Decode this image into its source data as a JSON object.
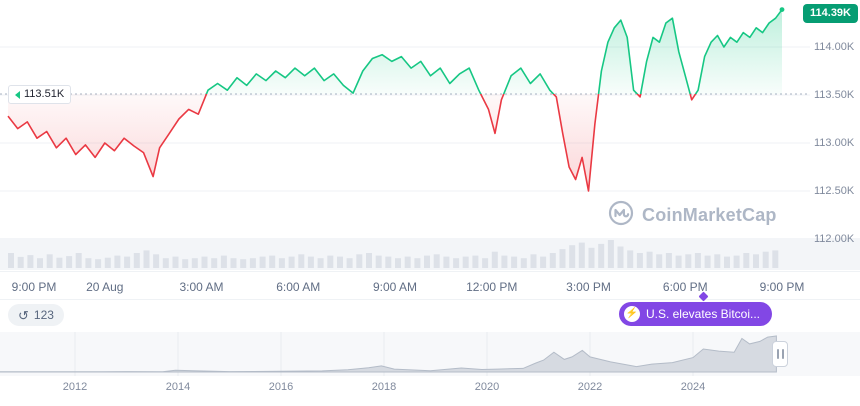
{
  "watermark": "CoinMarketCap",
  "colors": {
    "green": "#16c784",
    "red": "#ea3943",
    "purple": "#8247e5",
    "price_badge_bg": "#069d73",
    "axis_text": "#808a9d",
    "grid": "#eff2f5",
    "volume_bar": "#dde1e8",
    "minimap_fill": "#d6dae1"
  },
  "toolbar": {
    "history_icon": "↺",
    "history_count": "123",
    "bolt_icon": "⚡",
    "news_label": "U.S. elevates Bitcoi..."
  },
  "chart_data": [
    {
      "type": "area",
      "title": "BTC price, last 24 hours (baseline chart)",
      "baseline": 113.51,
      "baseline_label": "113.51K",
      "last_price_label": "114.39K",
      "ylim": [
        111.95,
        114.55
      ],
      "y_ticks": [
        "114.00K",
        "113.50K",
        "113.00K",
        "112.50K",
        "112.00K"
      ],
      "y_tick_values": [
        114.0,
        113.5,
        113.0,
        112.5,
        112.0
      ],
      "x_labels": [
        "9:00 PM",
        "20 Aug",
        "3:00 AM",
        "6:00 AM",
        "9:00 AM",
        "12:00 PM",
        "3:00 PM",
        "6:00 PM",
        "9:00 PM"
      ],
      "x_label_hours": [
        0,
        3,
        6,
        9,
        12,
        15,
        18,
        21,
        24
      ],
      "series": [
        {
          "name": "price_k_usd",
          "x": [
            0,
            0.3,
            0.6,
            0.9,
            1.2,
            1.5,
            1.8,
            2.1,
            2.4,
            2.7,
            3.0,
            3.3,
            3.6,
            3.9,
            4.2,
            4.5,
            4.7,
            5.0,
            5.3,
            5.6,
            5.9,
            6.2,
            6.5,
            6.8,
            7.1,
            7.4,
            7.7,
            8.0,
            8.3,
            8.6,
            8.9,
            9.2,
            9.5,
            9.8,
            10.1,
            10.4,
            10.7,
            11.0,
            11.3,
            11.6,
            11.9,
            12.2,
            12.5,
            12.8,
            13.1,
            13.4,
            13.7,
            14.0,
            14.3,
            14.6,
            14.9,
            15.1,
            15.3,
            15.6,
            15.9,
            16.2,
            16.5,
            16.8,
            17.0,
            17.2,
            17.4,
            17.6,
            17.8,
            18.0,
            18.2,
            18.4,
            18.6,
            18.8,
            19.0,
            19.2,
            19.4,
            19.6,
            19.8,
            20.0,
            20.2,
            20.4,
            20.6,
            20.8,
            21.0,
            21.2,
            21.4,
            21.6,
            21.8,
            22.0,
            22.2,
            22.4,
            22.6,
            22.8,
            23.0,
            23.2,
            23.4,
            23.6,
            23.8,
            24.0
          ],
          "values": [
            113.28,
            113.15,
            113.22,
            113.05,
            113.12,
            112.95,
            113.05,
            112.88,
            112.98,
            112.85,
            113.0,
            112.92,
            113.05,
            112.97,
            112.9,
            112.65,
            112.95,
            113.1,
            113.25,
            113.35,
            113.3,
            113.55,
            113.62,
            113.55,
            113.68,
            113.6,
            113.72,
            113.65,
            113.75,
            113.68,
            113.78,
            113.7,
            113.78,
            113.65,
            113.72,
            113.6,
            113.52,
            113.75,
            113.88,
            113.92,
            113.85,
            113.9,
            113.78,
            113.85,
            113.7,
            113.78,
            113.62,
            113.72,
            113.78,
            113.55,
            113.35,
            113.1,
            113.45,
            113.7,
            113.78,
            113.62,
            113.72,
            113.55,
            113.48,
            113.1,
            112.75,
            112.62,
            112.85,
            112.5,
            113.2,
            113.75,
            114.05,
            114.2,
            114.28,
            114.1,
            113.55,
            113.48,
            113.85,
            114.1,
            114.05,
            114.25,
            114.3,
            113.95,
            113.7,
            113.45,
            113.55,
            113.9,
            114.05,
            114.12,
            114.0,
            114.1,
            114.05,
            114.15,
            114.1,
            114.2,
            114.15,
            114.25,
            114.3,
            114.39
          ]
        }
      ],
      "volume_norm": [
        0.5,
        0.35,
        0.42,
        0.3,
        0.45,
        0.32,
        0.38,
        0.5,
        0.3,
        0.26,
        0.32,
        0.4,
        0.36,
        0.5,
        0.6,
        0.45,
        0.3,
        0.36,
        0.26,
        0.3,
        0.36,
        0.3,
        0.4,
        0.3,
        0.26,
        0.3,
        0.36,
        0.4,
        0.3,
        0.36,
        0.45,
        0.36,
        0.3,
        0.4,
        0.36,
        0.3,
        0.45,
        0.5,
        0.4,
        0.36,
        0.3,
        0.36,
        0.3,
        0.4,
        0.45,
        0.36,
        0.3,
        0.36,
        0.4,
        0.3,
        0.55,
        0.4,
        0.36,
        0.3,
        0.45,
        0.36,
        0.5,
        0.65,
        0.8,
        0.9,
        0.7,
        0.85,
        1.0,
        0.75,
        0.6,
        0.5,
        0.55,
        0.45,
        0.5,
        0.4,
        0.45,
        0.5,
        0.4,
        0.45,
        0.36,
        0.4,
        0.5,
        0.45,
        0.55,
        0.6
      ]
    },
    {
      "type": "area",
      "title": "All-time range minimap",
      "year_ticks": [
        2012,
        2014,
        2016,
        2018,
        2020,
        2022,
        2024
      ],
      "x": [
        2010.5,
        2011.5,
        2012.5,
        2013.0,
        2013.7,
        2013.95,
        2014.3,
        2015.0,
        2016.0,
        2016.8,
        2017.3,
        2017.7,
        2017.95,
        2018.2,
        2018.9,
        2019.5,
        2019.9,
        2020.2,
        2020.7,
        2020.95,
        2021.1,
        2021.3,
        2021.5,
        2021.65,
        2021.85,
        2022.0,
        2022.4,
        2022.9,
        2023.2,
        2023.6,
        2024.0,
        2024.2,
        2024.5,
        2024.8,
        2024.95,
        2025.1,
        2025.3,
        2025.45,
        2025.62
      ],
      "values": [
        0.005,
        0.005,
        0.006,
        0.01,
        0.008,
        0.05,
        0.035,
        0.012,
        0.02,
        0.03,
        0.06,
        0.12,
        0.17,
        0.08,
        0.035,
        0.11,
        0.07,
        0.08,
        0.1,
        0.25,
        0.33,
        0.55,
        0.35,
        0.42,
        0.6,
        0.42,
        0.28,
        0.15,
        0.22,
        0.26,
        0.4,
        0.64,
        0.58,
        0.55,
        0.93,
        0.78,
        0.85,
        0.97,
        1.0
      ]
    }
  ]
}
